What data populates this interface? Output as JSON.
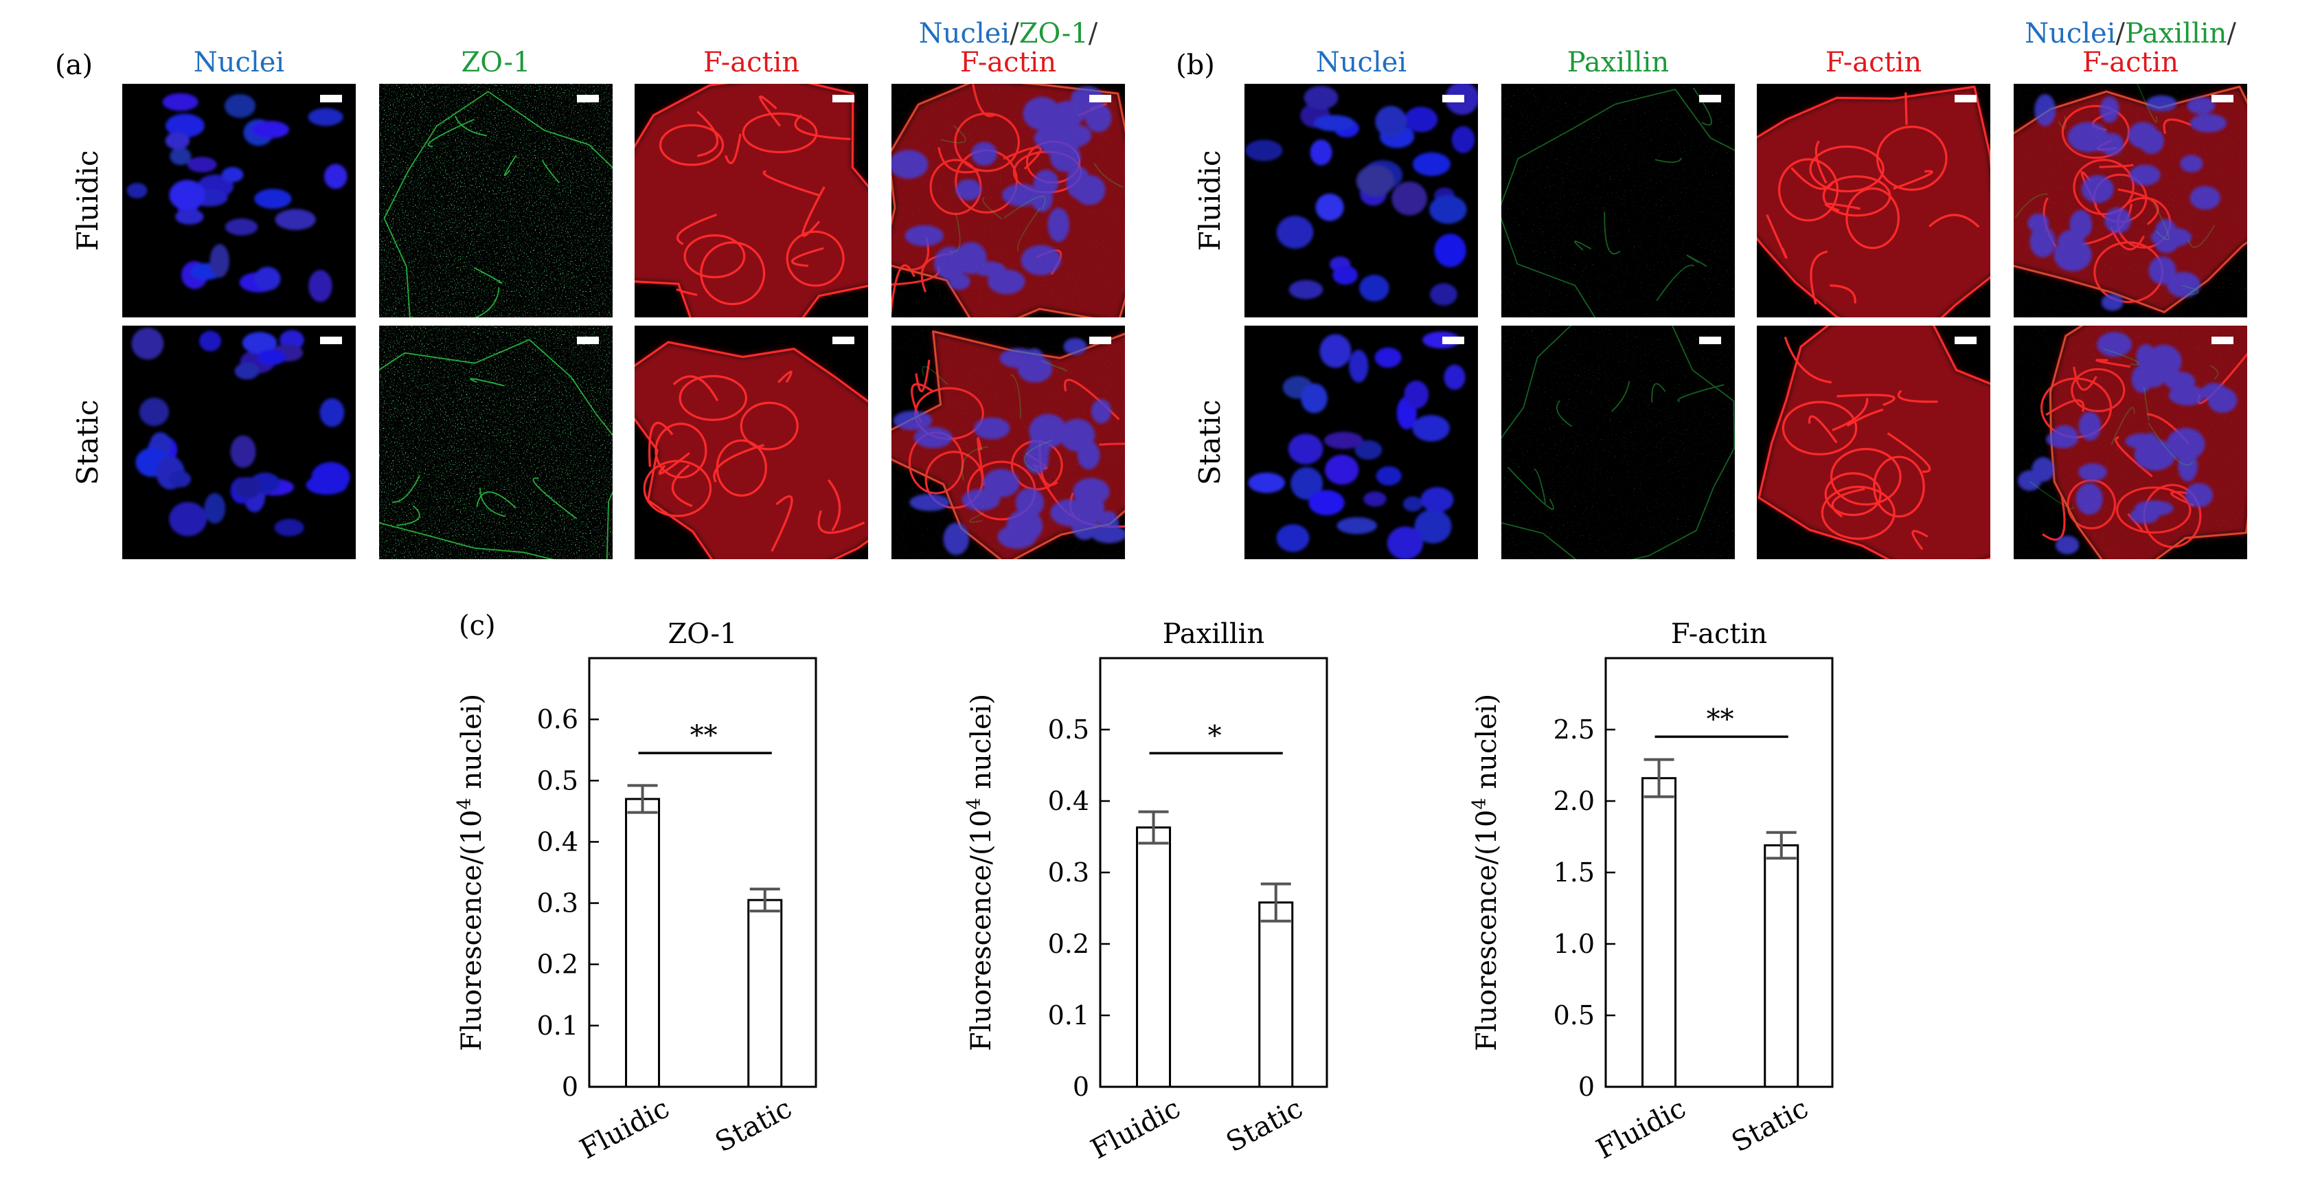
{
  "colors": {
    "nuclei": "#1f6fc0",
    "zo1": "#1d9a3a",
    "paxillin": "#1d9a3a",
    "factin": "#e0191d",
    "separator": "#333333",
    "bar_fill": "#ffffff",
    "bar_stroke": "#000000",
    "errorbar": "#555555"
  },
  "panel_a": {
    "label": "(a)",
    "column_headers": [
      {
        "parts": [
          {
            "text": "Nuclei",
            "channel": "nuclei"
          }
        ]
      },
      {
        "parts": [
          {
            "text": "ZO-1",
            "channel": "zo1"
          }
        ]
      },
      {
        "parts": [
          {
            "text": "F-actin",
            "channel": "factin"
          }
        ]
      },
      {
        "parts": [
          {
            "text": "Nuclei",
            "channel": "nuclei"
          },
          {
            "text": "/",
            "channel": "separator"
          },
          {
            "text": "ZO-1",
            "channel": "zo1"
          },
          {
            "text": "/",
            "channel": "separator"
          }
        ],
        "line2": {
          "text": "F-actin",
          "channel": "factin"
        }
      }
    ],
    "row_labels": [
      "Fluidic",
      "Static"
    ],
    "image_channels": [
      "nuclei",
      "zo1",
      "factin",
      "merge"
    ]
  },
  "panel_b": {
    "label": "(b)",
    "column_headers": [
      {
        "parts": [
          {
            "text": "Nuclei",
            "channel": "nuclei"
          }
        ]
      },
      {
        "parts": [
          {
            "text": "Paxillin",
            "channel": "paxillin"
          }
        ]
      },
      {
        "parts": [
          {
            "text": "F-actin",
            "channel": "factin"
          }
        ]
      },
      {
        "parts": [
          {
            "text": "Nuclei",
            "channel": "nuclei"
          },
          {
            "text": "/",
            "channel": "separator"
          },
          {
            "text": "Paxillin",
            "channel": "paxillin"
          },
          {
            "text": "/",
            "channel": "separator"
          }
        ],
        "line2": {
          "text": "F-actin",
          "channel": "factin"
        }
      }
    ],
    "row_labels": [
      "Fluidic",
      "Static"
    ],
    "image_channels": [
      "nuclei",
      "paxillin",
      "factin",
      "merge"
    ]
  },
  "panel_c": {
    "label": "(c)"
  },
  "chart_data": [
    {
      "type": "bar",
      "title": "ZO-1",
      "ylabel": "Fluorescence/(10^4 nuclei)",
      "categories": [
        "Fluidic",
        "Static"
      ],
      "values": [
        0.47,
        0.305
      ],
      "errors": [
        0.022,
        0.018
      ],
      "ylim": [
        0,
        0.7
      ],
      "yticks": [
        0,
        0.1,
        0.2,
        0.3,
        0.4,
        0.5,
        0.6
      ],
      "yticklabels": [
        "0",
        "0.1",
        "0.2",
        "0.3",
        "0.4",
        "0.5",
        "0.6"
      ],
      "significance": {
        "text": "**",
        "level": 0.545
      },
      "grid": false
    },
    {
      "type": "bar",
      "title": "Paxillin",
      "ylabel": "Fluorescence/(10^4 nuclei)",
      "categories": [
        "Fluidic",
        "Static"
      ],
      "values": [
        0.363,
        0.258
      ],
      "errors": [
        0.022,
        0.026
      ],
      "ylim": [
        0,
        0.6
      ],
      "yticks": [
        0,
        0.1,
        0.2,
        0.3,
        0.4,
        0.5
      ],
      "yticklabels": [
        "0",
        "0.1",
        "0.2",
        "0.3",
        "0.4",
        "0.5"
      ],
      "significance": {
        "text": "*",
        "level": 0.467
      },
      "grid": false
    },
    {
      "type": "bar",
      "title": "F-actin",
      "ylabel": "Fluorescence/(10^4 nuclei)",
      "categories": [
        "Fluidic",
        "Static"
      ],
      "values": [
        2.16,
        1.69
      ],
      "errors": [
        0.13,
        0.09
      ],
      "ylim": [
        0,
        3.0
      ],
      "yticks": [
        0,
        0.5,
        1.0,
        1.5,
        2.0,
        2.5
      ],
      "yticklabels": [
        "0",
        "0.5",
        "1.0",
        "1.5",
        "2.0",
        "2.5"
      ],
      "significance": {
        "text": "**",
        "level": 2.45
      },
      "grid": false
    }
  ]
}
